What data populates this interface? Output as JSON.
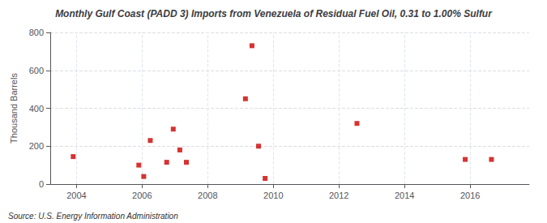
{
  "chart_data": {
    "type": "scatter",
    "title": "Monthly Gulf Coast (PADD 3) Imports from Venezuela of Residual Fuel Oil, 0.31 to 1.00% Sulfur",
    "ylabel": "Thousand Barrels",
    "annotations": [
      "Source: U.S. Energy Information Administration"
    ],
    "x": [
      2003.9,
      2005.9,
      2006.05,
      2006.25,
      2006.75,
      2006.95,
      2007.15,
      2007.35,
      2009.15,
      2009.35,
      2009.55,
      2009.75,
      2012.55,
      2015.85,
      2016.65
    ],
    "values": [
      145,
      100,
      40,
      230,
      115,
      290,
      180,
      115,
      450,
      730,
      200,
      30,
      320,
      130,
      130
    ],
    "color": "#cc0000",
    "marker": "square",
    "xlim": [
      2003.2,
      2017.8
    ],
    "xticks": [
      2004,
      2006,
      2008,
      2010,
      2012,
      2014,
      2016
    ],
    "ylim": [
      0,
      800
    ],
    "yticks": [
      0,
      200,
      400,
      600,
      800
    ],
    "grid": true
  }
}
